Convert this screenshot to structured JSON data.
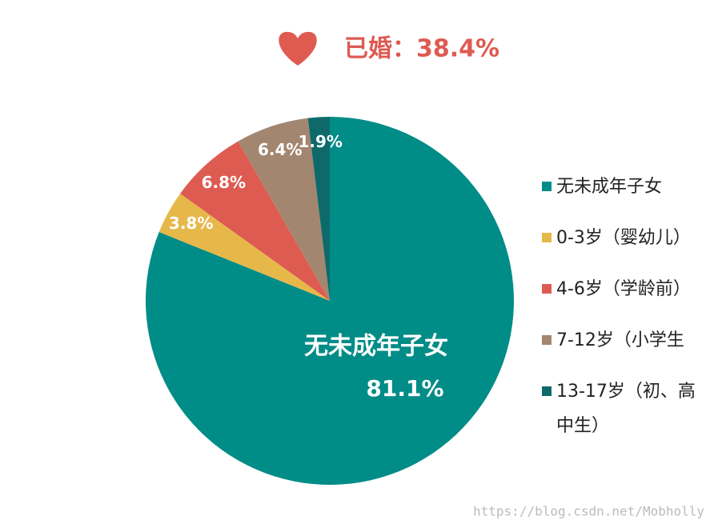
{
  "chart_data": {
    "type": "pie",
    "title": "已婚：38.4%",
    "categories": [
      "无未成年子女",
      "0-3岁（婴幼儿）",
      "4-6岁（学龄前）",
      "7-12岁（小学生",
      "13-17岁（初、高中生）"
    ],
    "values": [
      81.1,
      3.8,
      6.8,
      6.4,
      1.9
    ],
    "value_labels": [
      "81.1%",
      "3.8%",
      "6.8%",
      "6.4%",
      "1.9%"
    ],
    "colors": [
      "#008C87",
      "#E6B84A",
      "#DE5B52",
      "#A38670",
      "#0E6A6A"
    ],
    "legend": "right",
    "annotation": "https://blog.csdn.net/Mobholly"
  }
}
